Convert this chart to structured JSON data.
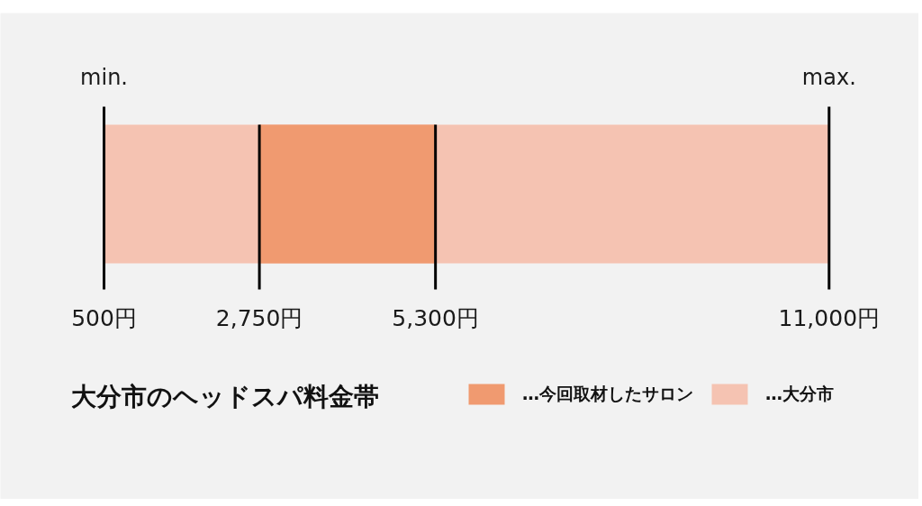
{
  "chart_data": {
    "type": "bar",
    "orientation": "horizontal",
    "title": "大分市のヘッドスパ料金帯",
    "categories": [
      null
    ],
    "series": [
      {
        "name": "…今回取材したサロン",
        "color": "#f09a70",
        "values": [
          2550
        ],
        "base": [
          2750
        ]
      },
      {
        "name": "…大分市",
        "color": "#f5c3b2",
        "values": [
          10500
        ],
        "base": [
          500
        ]
      }
    ],
    "xlim": [
      -1000,
      12300
    ],
    "xticks": [
      {
        "value": 500,
        "label": "500円"
      },
      {
        "value": 2750,
        "label": "2,750円"
      },
      {
        "value": 5300,
        "label": "5,300円"
      },
      {
        "value": 11000,
        "label": "11,000円"
      }
    ],
    "ref_lines": [
      {
        "axis": "x",
        "value": 500,
        "label": "min."
      },
      {
        "axis": "x",
        "value": 2750
      },
      {
        "axis": "x",
        "value": 5300
      },
      {
        "axis": "x",
        "value": 11000,
        "label": "max."
      }
    ],
    "tick_labels": "x",
    "legend": "bottom right"
  }
}
